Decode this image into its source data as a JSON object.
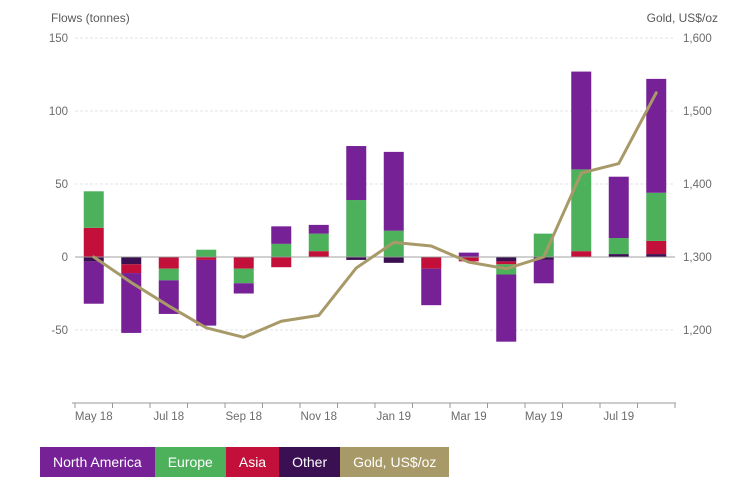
{
  "chart_data": {
    "type": "bar",
    "description": "Monthly regional gold-backed ETF flows (stacked bars, tonnes) with gold price line (US$/oz) on secondary axis",
    "categories": [
      "May 18",
      "Jun 18",
      "Jul 18",
      "Aug 18",
      "Sep 18",
      "Oct 18",
      "Nov 18",
      "Dec 18",
      "Jan 19",
      "Feb 19",
      "Mar 19",
      "Apr 19",
      "May 19",
      "Jun 19",
      "Jul 19",
      "Aug 19"
    ],
    "x_tick_labels": [
      "May 18",
      "Jul 18",
      "Sep 18",
      "Nov 18",
      "Jan 19",
      "Mar 19",
      "May 19",
      "Jul 19"
    ],
    "left_axis": {
      "title": "Flows (tonnes)",
      "tick_labels": [
        "150",
        "100",
        "50",
        "0",
        "-50"
      ],
      "tick_values": [
        150,
        100,
        50,
        0,
        -50
      ],
      "range": [
        -100,
        150
      ],
      "grid": true
    },
    "right_axis": {
      "title": "Gold, US$/oz",
      "tick_labels": [
        "1,600",
        "1,500",
        "1,400",
        "1,300",
        "1,200"
      ],
      "tick_values": [
        1600,
        1500,
        1400,
        1300,
        1200
      ],
      "range": [
        1100,
        1600
      ]
    },
    "stack_order_from_zero": [
      "Other",
      "Asia",
      "Europe",
      "North America"
    ],
    "series": [
      {
        "name": "North America",
        "color": "#762196",
        "values": [
          -29,
          -41,
          -23,
          -45,
          -7,
          12,
          6,
          37,
          54,
          -25,
          3,
          -46,
          -16,
          67,
          42,
          78
        ]
      },
      {
        "name": "Europe",
        "color": "#4DB15C",
        "values": [
          25,
          0,
          -8,
          5,
          -10,
          9,
          12,
          39,
          18,
          0,
          0,
          -7,
          16,
          56,
          11,
          33
        ]
      },
      {
        "name": "Asia",
        "color": "#C2103A",
        "values": [
          20,
          -6,
          -8,
          -2,
          -8,
          -7,
          4,
          0,
          0,
          -8,
          -3,
          -2,
          0,
          4,
          0,
          9
        ]
      },
      {
        "name": "Other",
        "color": "#3A1053",
        "values": [
          -3,
          -5,
          0,
          0,
          0,
          0,
          0,
          -2,
          -4,
          0,
          0,
          -3,
          -2,
          0,
          2,
          2
        ]
      }
    ],
    "line_series": {
      "name": "Gold, US$/oz",
      "color": "#A89A68",
      "values": [
        1300,
        1265,
        1233,
        1203,
        1190,
        1212,
        1220,
        1285,
        1320,
        1315,
        1293,
        1284,
        1300,
        1415,
        1428,
        1525
      ]
    },
    "legend_position": "bottom-left"
  },
  "legend": {
    "items": [
      {
        "label": "North America",
        "color": "#762196"
      },
      {
        "label": "Europe",
        "color": "#4DB15C"
      },
      {
        "label": "Asia",
        "color": "#C2103A"
      },
      {
        "label": "Other",
        "color": "#3A1053"
      },
      {
        "label": "Gold, US$/oz",
        "color": "#A89A68"
      }
    ]
  },
  "colors": {
    "grid": "#e3e3e3",
    "zero_line": "#999999",
    "axis_line": "#999999",
    "axis_text": "#6b6b6b",
    "title_text": "#58595b",
    "background": "#ffffff"
  }
}
